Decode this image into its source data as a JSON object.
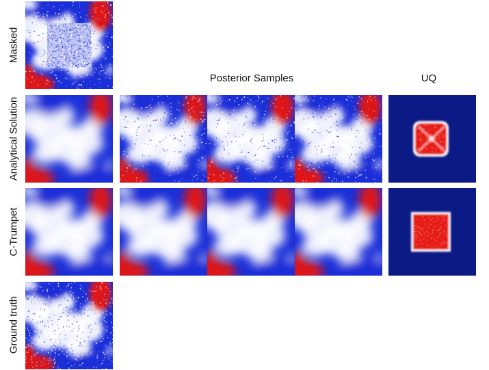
{
  "figure": {
    "row_labels": {
      "masked": "Masked",
      "analytical": "Analytical Solution",
      "ctrumpet": "C-Trumpet",
      "ground_truth": "Ground truth"
    },
    "column_headers": {
      "posterior_samples": "Posterior Samples",
      "uq": "UQ"
    },
    "colors": {
      "red": "#e01818",
      "blue": "#1a2fd8",
      "white": "#ffffff",
      "uq_background": "#0c1a86",
      "uq_hot": "#e61a14"
    }
  }
}
